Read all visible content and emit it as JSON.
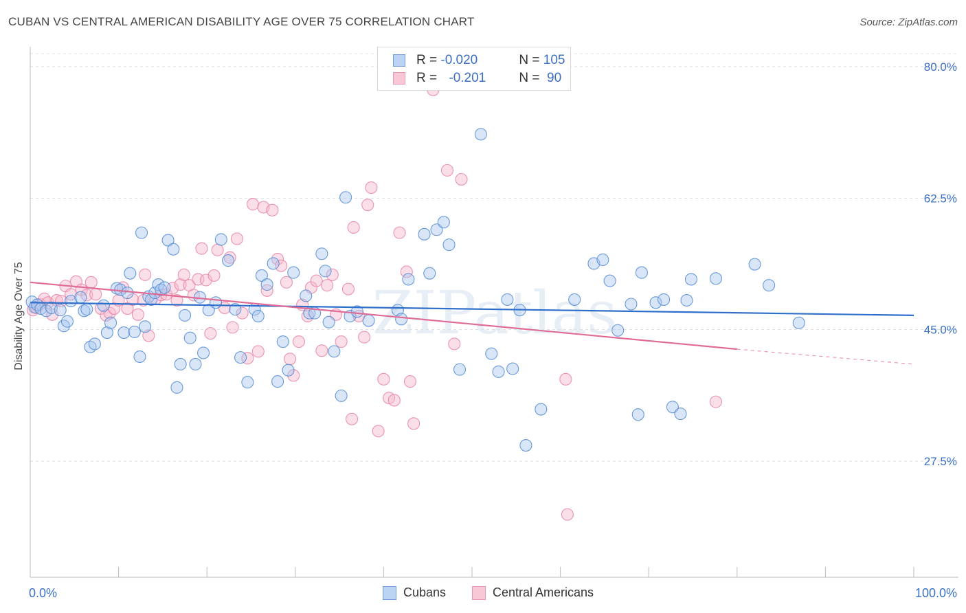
{
  "title": "CUBAN VS CENTRAL AMERICAN DISABILITY AGE OVER 75 CORRELATION CHART",
  "source": "Source: ZipAtlas.com",
  "watermark": "ZIPatlas",
  "colors": {
    "cubans_fill": "#a9c7f0",
    "cubans_stroke": "#5b8fd6",
    "cubans_line": "#2e6fcb",
    "central_fill": "#f7b8cb",
    "central_stroke": "#e888a8",
    "central_line": "#e06c96",
    "tick_label": "#3a6fc4"
  },
  "legend": {
    "row1": {
      "r_label": "R = ",
      "r_value": "-0.020",
      "n_label": "N = ",
      "n_value": "105"
    },
    "row2": {
      "r_label": "R = ",
      "r_value": "-0.201",
      "n_label": "N = ",
      "n_value": " 90"
    }
  },
  "chart_data": {
    "type": "scatter",
    "title": "CUBAN VS CENTRAL AMERICAN DISABILITY AGE OVER 75 CORRELATION CHART",
    "xlabel": "",
    "ylabel": "Disability Age Over 75",
    "xlim": [
      0,
      100
    ],
    "ylim": [
      10,
      83
    ],
    "x_tick_labels": [
      "0.0%",
      "100.0%"
    ],
    "y_ticks": [
      27.5,
      45.0,
      62.5,
      80.0
    ],
    "y_tick_labels": [
      "27.5%",
      "45.0%",
      "62.5%",
      "80.0%"
    ],
    "grid": "horizontal dashed",
    "legend_position": "top-center",
    "series": [
      {
        "name": "Cubans",
        "r": -0.02,
        "n": 105,
        "trend": {
          "x": [
            0,
            100
          ],
          "y": [
            48.6,
            46.9
          ]
        },
        "points": [
          [
            0.2,
            48.7
          ],
          [
            0.5,
            48.0
          ],
          [
            0.8,
            48.3
          ],
          [
            1.2,
            47.8
          ],
          [
            1.8,
            47.5
          ],
          [
            2.4,
            47.9
          ],
          [
            3.4,
            47.6
          ],
          [
            3.8,
            45.5
          ],
          [
            4.2,
            46.1
          ],
          [
            4.6,
            48.8
          ],
          [
            5.7,
            49.3
          ],
          [
            6.1,
            47.5
          ],
          [
            6.4,
            47.7
          ],
          [
            6.8,
            42.7
          ],
          [
            7.3,
            43.1
          ],
          [
            8.3,
            48.2
          ],
          [
            8.7,
            44.6
          ],
          [
            9.1,
            45.9
          ],
          [
            9.8,
            50.5
          ],
          [
            10.2,
            50.3
          ],
          [
            10.6,
            44.6
          ],
          [
            11.0,
            49.9
          ],
          [
            11.3,
            52.5
          ],
          [
            11.8,
            44.7
          ],
          [
            12.4,
            41.4
          ],
          [
            12.6,
            57.9
          ],
          [
            13.0,
            45.4
          ],
          [
            13.4,
            49.4
          ],
          [
            13.7,
            49.0
          ],
          [
            14.1,
            49.9
          ],
          [
            14.5,
            51.0
          ],
          [
            14.8,
            50.3
          ],
          [
            15.2,
            50.6
          ],
          [
            15.6,
            56.9
          ],
          [
            16.2,
            55.7
          ],
          [
            16.6,
            37.3
          ],
          [
            17.0,
            40.4
          ],
          [
            17.5,
            46.9
          ],
          [
            18.1,
            43.9
          ],
          [
            18.7,
            40.4
          ],
          [
            19.2,
            49.3
          ],
          [
            19.6,
            41.9
          ],
          [
            20.2,
            47.6
          ],
          [
            21.0,
            48.6
          ],
          [
            21.6,
            57.0
          ],
          [
            22.4,
            54.2
          ],
          [
            23.2,
            47.7
          ],
          [
            23.8,
            41.3
          ],
          [
            24.6,
            38.0
          ],
          [
            25.4,
            47.7
          ],
          [
            25.8,
            46.8
          ],
          [
            26.2,
            52.2
          ],
          [
            26.8,
            51.0
          ],
          [
            27.5,
            53.8
          ],
          [
            28.0,
            38.1
          ],
          [
            28.6,
            43.4
          ],
          [
            29.2,
            39.6
          ],
          [
            29.8,
            52.6
          ],
          [
            31.2,
            49.5
          ],
          [
            31.6,
            47.2
          ],
          [
            32.2,
            47.2
          ],
          [
            33.0,
            55.1
          ],
          [
            33.4,
            52.8
          ],
          [
            33.8,
            46.0
          ],
          [
            34.4,
            42.1
          ],
          [
            35.2,
            36.2
          ],
          [
            35.7,
            62.6
          ],
          [
            36.2,
            46.8
          ],
          [
            37.0,
            47.4
          ],
          [
            38.3,
            46.2
          ],
          [
            41.6,
            47.6
          ],
          [
            42.0,
            46.4
          ],
          [
            42.8,
            51.7
          ],
          [
            44.6,
            57.7
          ],
          [
            45.2,
            52.5
          ],
          [
            46.0,
            58.3
          ],
          [
            46.8,
            59.3
          ],
          [
            47.4,
            56.3
          ],
          [
            48.6,
            39.7
          ],
          [
            51.0,
            71.0
          ],
          [
            52.2,
            41.8
          ],
          [
            53.0,
            39.4
          ],
          [
            54.0,
            49.0
          ],
          [
            54.6,
            39.8
          ],
          [
            55.4,
            47.6
          ],
          [
            56.1,
            29.6
          ],
          [
            57.8,
            34.4
          ],
          [
            61.6,
            49.0
          ],
          [
            63.8,
            53.8
          ],
          [
            64.8,
            54.3
          ],
          [
            65.6,
            51.5
          ],
          [
            66.5,
            44.9
          ],
          [
            68.0,
            48.4
          ],
          [
            68.8,
            33.7
          ],
          [
            69.2,
            52.6
          ],
          [
            70.8,
            48.6
          ],
          [
            71.7,
            49.0
          ],
          [
            72.7,
            34.7
          ],
          [
            73.6,
            33.8
          ],
          [
            74.3,
            48.9
          ],
          [
            74.8,
            51.7
          ],
          [
            77.6,
            51.8
          ],
          [
            82.0,
            53.7
          ],
          [
            83.6,
            50.9
          ],
          [
            87.0,
            45.9
          ]
        ]
      },
      {
        "name": "Central Americans",
        "r": -0.201,
        "n": 90,
        "trend": {
          "x": [
            0,
            80
          ],
          "y": [
            51.3,
            42.4
          ]
        },
        "trend_extension": {
          "x": [
            80,
            100
          ],
          "y": [
            42.4,
            40.4
          ]
        },
        "points": [
          [
            0.3,
            47.6
          ],
          [
            0.7,
            47.9
          ],
          [
            1.1,
            48.4
          ],
          [
            1.6,
            49.1
          ],
          [
            2.0,
            48.6
          ],
          [
            2.5,
            47.0
          ],
          [
            3.0,
            48.9
          ],
          [
            3.5,
            48.8
          ],
          [
            4.0,
            50.8
          ],
          [
            4.6,
            49.7
          ],
          [
            5.2,
            51.4
          ],
          [
            5.8,
            50.3
          ],
          [
            6.4,
            49.6
          ],
          [
            6.9,
            51.3
          ],
          [
            7.4,
            49.7
          ],
          [
            8.0,
            47.8
          ],
          [
            8.6,
            46.9
          ],
          [
            9.0,
            47.2
          ],
          [
            9.5,
            47.8
          ],
          [
            10.0,
            48.9
          ],
          [
            10.5,
            50.6
          ],
          [
            11.0,
            47.8
          ],
          [
            11.6,
            49.0
          ],
          [
            12.2,
            47.0
          ],
          [
            12.8,
            48.9
          ],
          [
            13.0,
            52.3
          ],
          [
            13.4,
            44.2
          ],
          [
            14.2,
            49.1
          ],
          [
            14.8,
            49.6
          ],
          [
            15.4,
            49.7
          ],
          [
            16.1,
            50.5
          ],
          [
            16.6,
            48.9
          ],
          [
            17.0,
            51.0
          ],
          [
            17.4,
            52.3
          ],
          [
            18.0,
            50.9
          ],
          [
            18.5,
            49.6
          ],
          [
            19.0,
            51.7
          ],
          [
            19.4,
            55.8
          ],
          [
            19.9,
            51.6
          ],
          [
            20.4,
            44.5
          ],
          [
            20.8,
            52.2
          ],
          [
            21.2,
            55.6
          ],
          [
            22.0,
            47.9
          ],
          [
            22.6,
            54.6
          ],
          [
            22.9,
            45.3
          ],
          [
            23.4,
            57.1
          ],
          [
            24.0,
            47.2
          ],
          [
            24.6,
            41.2
          ],
          [
            25.2,
            61.7
          ],
          [
            25.8,
            42.1
          ],
          [
            26.4,
            61.3
          ],
          [
            26.8,
            50.2
          ],
          [
            27.4,
            60.9
          ],
          [
            28.0,
            54.4
          ],
          [
            28.4,
            53.5
          ],
          [
            29.0,
            51.3
          ],
          [
            29.4,
            41.1
          ],
          [
            29.8,
            38.9
          ],
          [
            30.4,
            43.4
          ],
          [
            30.8,
            48.3
          ],
          [
            31.4,
            46.8
          ],
          [
            31.8,
            50.6
          ],
          [
            32.4,
            51.5
          ],
          [
            33.0,
            42.2
          ],
          [
            33.6,
            50.9
          ],
          [
            34.2,
            52.3
          ],
          [
            34.6,
            47.0
          ],
          [
            35.2,
            43.4
          ],
          [
            36.0,
            50.4
          ],
          [
            36.6,
            58.6
          ],
          [
            36.4,
            33.1
          ],
          [
            37.2,
            46.8
          ],
          [
            37.8,
            44.0
          ],
          [
            38.2,
            61.6
          ],
          [
            38.6,
            63.9
          ],
          [
            39.4,
            31.5
          ],
          [
            40.0,
            38.4
          ],
          [
            40.6,
            35.9
          ],
          [
            41.2,
            35.6
          ],
          [
            41.8,
            57.9
          ],
          [
            42.6,
            52.7
          ],
          [
            43.0,
            38.1
          ],
          [
            43.4,
            32.5
          ],
          [
            45.6,
            76.9
          ],
          [
            47.2,
            66.2
          ],
          [
            48.0,
            43.1
          ],
          [
            48.8,
            65.0
          ],
          [
            60.6,
            38.4
          ],
          [
            60.8,
            20.4
          ],
          [
            77.6,
            35.4
          ]
        ]
      }
    ]
  }
}
